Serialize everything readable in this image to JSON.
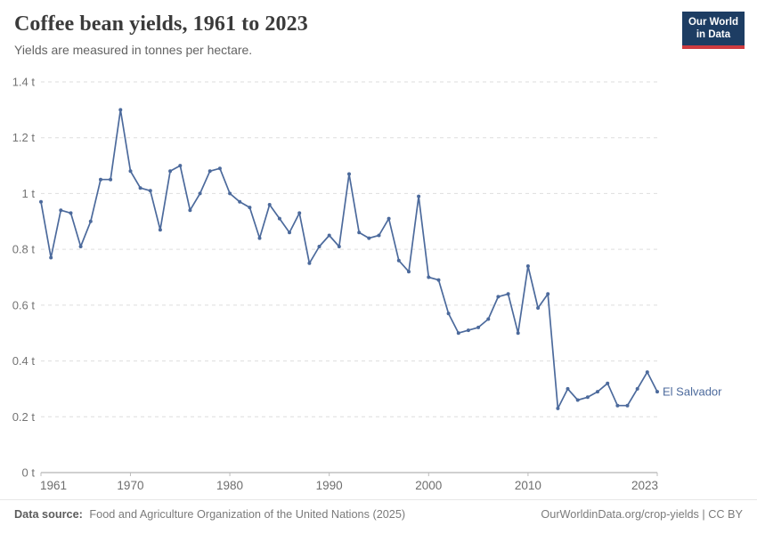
{
  "header": {
    "title": "Coffee bean yields, 1961 to 2023",
    "subtitle": "Yields are measured in tonnes per hectare.",
    "logo_line1": "Our World",
    "logo_line2": "in Data",
    "logo_bg": "#1d3d63",
    "logo_accent": "#ce3b40"
  },
  "chart_data": {
    "type": "line",
    "title": "Coffee bean yields, 1961 to 2023",
    "subtitle": "Yields are measured in tonnes per hectare.",
    "xlabel": "",
    "ylabel": "tonnes per hectare",
    "xlim": [
      1961,
      2023
    ],
    "ylim": [
      0,
      1.4
    ],
    "grid": "horizontal-dashed",
    "legend_position": "end-of-line-label",
    "x_ticks": [
      1961,
      1970,
      1980,
      1990,
      2000,
      2010,
      2023
    ],
    "y_ticks": [
      {
        "value": 0,
        "label": "0 t"
      },
      {
        "value": 0.2,
        "label": "0.2 t"
      },
      {
        "value": 0.4,
        "label": "0.4 t"
      },
      {
        "value": 0.6,
        "label": "0.6 t"
      },
      {
        "value": 0.8,
        "label": "0.8 t"
      },
      {
        "value": 1,
        "label": "1 t"
      },
      {
        "value": 1.2,
        "label": "1.2 t"
      },
      {
        "value": 1.4,
        "label": "1.4 t"
      }
    ],
    "series": [
      {
        "name": "El Salvador",
        "color": "#4c6a9c",
        "x": [
          1961,
          1962,
          1963,
          1964,
          1965,
          1966,
          1967,
          1968,
          1969,
          1970,
          1971,
          1972,
          1973,
          1974,
          1975,
          1976,
          1977,
          1978,
          1979,
          1980,
          1981,
          1982,
          1983,
          1984,
          1985,
          1986,
          1987,
          1988,
          1989,
          1990,
          1991,
          1992,
          1993,
          1994,
          1995,
          1996,
          1997,
          1998,
          1999,
          2000,
          2001,
          2002,
          2003,
          2004,
          2005,
          2006,
          2007,
          2008,
          2009,
          2010,
          2011,
          2012,
          2013,
          2014,
          2015,
          2016,
          2017,
          2018,
          2019,
          2020,
          2021,
          2022,
          2023
        ],
        "values": [
          0.97,
          0.77,
          0.94,
          0.93,
          0.81,
          0.9,
          1.05,
          1.05,
          1.3,
          1.08,
          1.02,
          1.01,
          0.87,
          1.08,
          1.1,
          0.94,
          1.0,
          1.08,
          1.09,
          1.0,
          0.97,
          0.95,
          0.84,
          0.96,
          0.91,
          0.86,
          0.93,
          0.75,
          0.81,
          0.85,
          0.81,
          1.07,
          0.86,
          0.84,
          0.85,
          0.91,
          0.76,
          0.72,
          0.99,
          0.7,
          0.69,
          0.57,
          0.5,
          0.51,
          0.52,
          0.55,
          0.63,
          0.64,
          0.5,
          0.74,
          0.59,
          0.64,
          0.23,
          0.3,
          0.26,
          0.27,
          0.29,
          0.32,
          0.24,
          0.24,
          0.3,
          0.36,
          0.29
        ]
      }
    ]
  },
  "footer": {
    "source_label": "Data source:",
    "source_text": "Food and Agriculture Organization of the United Nations (2025)",
    "right_text": "OurWorldinData.org/crop-yields | CC BY"
  }
}
